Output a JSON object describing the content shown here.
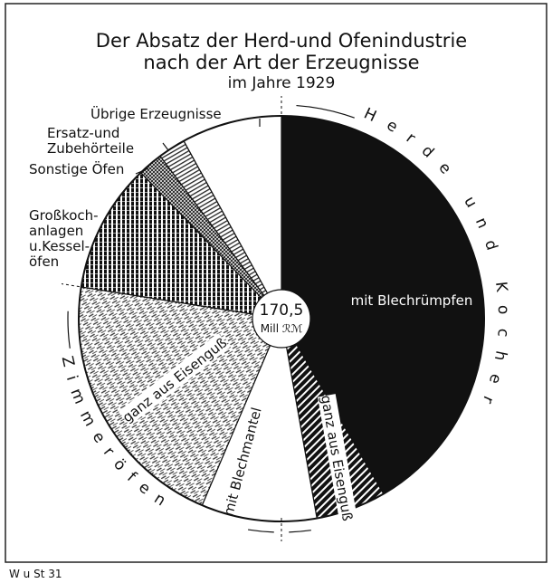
{
  "chart_data": {
    "type": "pie",
    "title": [
      "Der Absatz der Herd-und Ofenindustrie",
      "nach der Art der Erzeugnisse"
    ],
    "subtitle": "im Jahre 1929",
    "center_label": [
      "170,5",
      "Mill ℛℳ"
    ],
    "groups": [
      "Herde und Kocher",
      "Zimmeröfen"
    ],
    "categories": [
      [
        "mit Blechrümpfen"
      ],
      [
        "ganz aus Eisenguß"
      ],
      [
        "mit Blechmantel"
      ],
      [
        "ganz aus Eisenguß"
      ],
      [
        "Großkoch-",
        "anlagen",
        "u.Kessel-",
        "öfen"
      ],
      [
        "Sonstige Öfen"
      ],
      [
        "Ersatz-und",
        "Zubehörteile"
      ],
      [
        "Übrige Erzeugnisse"
      ]
    ],
    "values": [
      41.6,
      5.6,
      9.2,
      21.1,
      10.3,
      2,
      2.2,
      8
    ],
    "footer": "W u St 31"
  }
}
